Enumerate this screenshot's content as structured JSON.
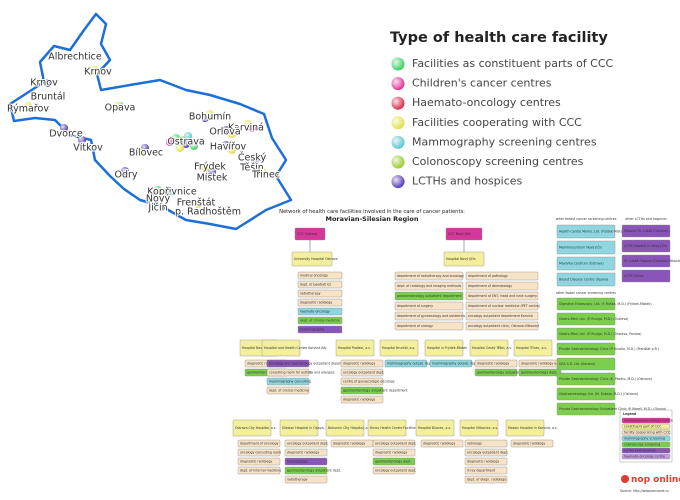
{
  "map": {
    "cities": [
      "Albrechtice",
      "Krnov",
      "Krnov",
      "Bruntál",
      "Rýmařov",
      "Opava",
      "Bohumín",
      "Karviná",
      "Orlová",
      "Ostrava",
      "Havířov",
      "Bílovec",
      "Vítkov",
      "Dvorce",
      "Odry",
      "Frýdek",
      "Místek",
      "Český",
      "Těšín",
      "Třinec",
      "Kopřivnice",
      "Nový",
      "Jičín",
      "Frenštát",
      "p. Radhoštěm"
    ]
  },
  "legend": {
    "title": "Type of health care facility",
    "items": [
      "Facilities as constituent parts of CCC",
      "Children's cancer centres",
      "Haemato-oncology centres",
      "Facilities cooperating with CCC",
      "Mammography screening centres",
      "Colonoscopy screening centres",
      "LCTHs and hospices"
    ]
  },
  "diagram": {
    "title": "Network of health care facilities involved in the care of cancer patients:",
    "region": "Moravian-Silesian Region",
    "centres": [
      "CCC Ostrava",
      "CCC Nový Jičín"
    ],
    "hospitals": [
      "University Hospital Ostrava",
      "Hospital Nový Jičín"
    ],
    "ostrava_depts": [
      "medical oncology",
      "dept. of paediatrics",
      "radiotherapy",
      "diagnostic radiology",
      "haemato-oncology",
      "dept. of clinical medicine",
      "mammography"
    ],
    "novyjicin_depts_left": [
      "department of radiotherapy and oncology",
      "dept. of radiology and imaging methods",
      "gastroenterology outpatient department",
      "department of surgery",
      "department of gynaecology and obstetrics",
      "department of urology"
    ],
    "novyjicin_depts_right": [
      "department of pathology",
      "department of dermatology",
      "department of ENT, head and neck surgery",
      "department of nuclear medicine (PET centre)",
      "oncology outpatient department Karviná",
      "oncology outpatient clinic, Ostrava-Vítkovice"
    ],
    "row1": [
      {
        "name": "Hospital Nový Jičín, a.s.",
        "items": [
          "diagnostic radiology",
          "gastroenterology outpatient department"
        ]
      },
      {
        "name": "Hospital and Health Centre Karviná-Ráj",
        "items": [
          "oncology and haematology outpatient department",
          "consulting room for asthma and allergies",
          "mammography consulting",
          "dept. of clinical medicine"
        ]
      },
      {
        "name": "Hospital Podlesí, a.s.",
        "items": [
          "diagnostic radiology",
          "oncology outpatient dept.",
          "centre of gynaecologic oncology",
          "gastroenterology outpatient department",
          "diagnostic radiology"
        ]
      },
      {
        "name": "Hospital Bruntál, a.s.",
        "items": [
          "mammography outpat. dept."
        ]
      },
      {
        "name": "Hospital in Frýdek-Místek",
        "items": [
          "mammography outpat. dept."
        ]
      },
      {
        "name": "Hospital Český Těšín, a.s.",
        "items": [
          "diagnostic radiology",
          "gastroenterology outpatient dept."
        ]
      },
      {
        "name": "Hospital Třinec, a.s.",
        "items": [
          "diagnostic radiology & CT",
          "gastroenterology dept."
        ]
      }
    ],
    "row2": [
      {
        "name": "Ostrava City Hospital, a.s.",
        "items": [
          "department of oncology",
          "oncology consulting room",
          "diagnostic radiology",
          "dept. of internal medicine"
        ]
      },
      {
        "name": "Silesian Hospital in Opava, a.s.",
        "items": [
          "oncology outpatient dept.",
          "diagnostic radiology",
          "haematology",
          "gastroenterology outpatient dept.",
          "radiotherapy"
        ]
      },
      {
        "name": "Bohumín City Hospital, a.s.",
        "items": [
          "diagnostic radiology"
        ]
      },
      {
        "name": "Krnov Health Centre Facilities & Annex",
        "items": [
          "oncology outpatient dept.",
          "diagnostic radiology",
          "gastroenterology dept.",
          "oncology outpatient dept."
        ]
      },
      {
        "name": "Hospital Bílovec, a.s.",
        "items": [
          "diagnostic radiology"
        ]
      },
      {
        "name": "Hospital Vítkovice, a.s.",
        "items": [
          "radiology",
          "oncology outpatient dept.",
          "diagnostic radiology",
          "X-ray department",
          "dept. of diagn. radiology"
        ]
      },
      {
        "name": "Mosaic Hospital in Karviná, a.s.",
        "items": [
          "diagnostic radiology"
        ]
      }
    ],
    "breast_label": "other breast cancer screening centres",
    "breast": [
      "Health Centre Mamo, Ltd. (Frýdek-Místek)",
      "Mammocentrum Nový Jičín",
      "MaxiVita Centrum (Ostrava)",
      "Breast Disease Centre (Opava)"
    ],
    "bowel_label": "other bowel cancer screening centres",
    "bowel": [
      "Digestive Endoscopy, Ltd. (F. Raška, M.D.) (Frýdek-Místek)",
      "Gastro-Med, Ltd. (P. Rusiga, M.D.) (Ostrava)",
      "Gastro-Med, Ltd. (P. Rusiga, M.D.) (Ostrava, Poruba)",
      "Private Gastroenterology Clinic (P. Klvaňa, M.D.) (Frenštát p.R.)",
      "GEA S.R. Ltd. (Karviná)",
      "Private Gastroenterology Clinic (K. Pazdro, M.D.) (Ostrava)",
      "Gastroenterology Ltd. (M. Kubala, M.D.) (Ostrava)",
      "Private Gastroenterology Outpatient Clinic (P. Mareš, M.D.) (Opava)"
    ],
    "hospice_label": "other LCTHs and hospices",
    "hospices": [
      "Hospice St. Lukáš (Ostrava)",
      "LCTH Hospital in Nový Jičín",
      "St. Lukáš Hospice (Ostrava-Vítkovice)",
      "LCTH Fulnek"
    ],
    "key_title": "Legend",
    "key": [
      "Comprehensive Cancer Centre",
      "constituent part of CCC",
      "facility cooperating with CCC",
      "mammography screening",
      "colonoscopy screening",
      "LCTHs and hospices",
      "haemato-oncology centre"
    ],
    "logo": "nop online",
    "source": "Source: http://www.onconet.cz"
  }
}
